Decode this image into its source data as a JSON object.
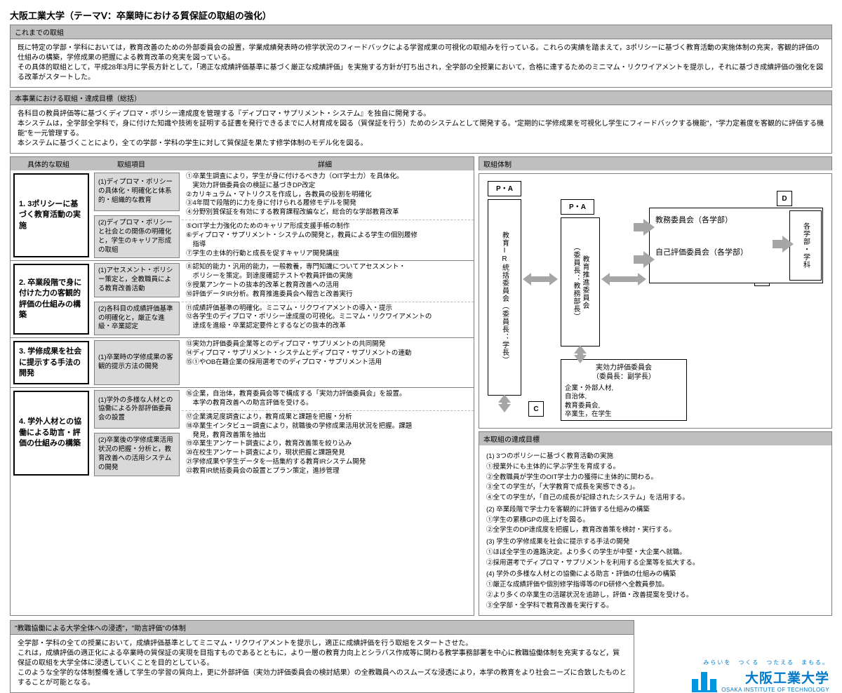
{
  "title": "大阪工業大学（テーマⅤ：卒業時における質保証の取組の強化）",
  "sec1": {
    "hdr": "これまでの取組",
    "body": "既に特定の学部・学科においては，教育改善のための外部委員会の設置，学業成績発表時の修学状況のフィードバックによる学習成果の可視化の取組みを行っている。これらの実績を踏まえて，3ポリシーに基づく教育活動の実施体制の充実，客観的評価の仕組みの構築，学修成果の把握による教育改革の充実を図っている。\nその具体的取組として，平成28年3月に学長方針として，「適正な成績評価基準に基づく厳正な成績評価」を実施する方針が打ち出され，全学部の全授業において，合格に達するためのミニマム・リクワイアメントを提示し，それに基づき成績評価の強化を図る改革がスタートした。"
  },
  "sec2": {
    "hdr": "本事業における取組・達成目標（総括）",
    "body": "各科目の教員評価等に基づくディプロマ・ポリシー達成度を管理する『ディプロマ・サプリメント・システム』を独自に開発する。\n本システムは，全学部全学科で，身に付けた知識や技術を証明する証書を発行できるまでに人材育成を図る（質保証を行う）ためのシステムとして開発する。\"定期的に学修成果を可視化し学生にフィードバックする機能\"，\"学力定着度を客観的に評価する機能\"を一元管理する。\n本システムに基づくことにより，全ての学部・学科の学生に対して質保証を果たす修学体制のモデル化を図る。"
  },
  "gridHdr": {
    "a": "具体的な取組",
    "b": "取組項目",
    "c": "詳細"
  },
  "rows": [
    {
      "cat": "1. 3ポリシーに基づく教育活動の実施",
      "subs": [
        "(1)ディプロマ・ポリシーの具体化・明確化と体系的・組織的な教育",
        "(2)ディプロマ・ポリシーと社会との関係の明確化と，学生のキャリア形成の取組"
      ],
      "dets": [
        "①卒業生調査により，学生が身に付けるべき力（OIT学士力）を具体化。\n　実効力評価委員会の検証に基づきDP改定\n②カリキュラム・マトリクスを作成し，各教員の役割を明確化\n③4年間で段階的に力を身に付けられる履修モデルを開発\n④分野別質保証を有効にする教育課程改編など，総合的な学部教育改革",
        "⑤OIT学士力強化のためのキャリア形成支援手帳の制作\n⑥ディプロマ・サプリメント・システムの開発と，教員による学生の個別履修\n　指導\n⑦学生の主体的行動と成長を促すキャリア開発講座"
      ]
    },
    {
      "cat": "2. 卒業段階で身に付けた力の客観的評価の仕組みの構築",
      "subs": [
        "(1)アセスメント・ポリシー策定と，全教職員による教育改善活動",
        "(2)各科目の成績評価基準の明確化と，厳正な進級・卒業認定"
      ],
      "dets": [
        "⑧認知的能力・汎用的能力，一般教養，専門知識についてアセスメント・\n　ポリシーを策定。到達度確認テストや教員評価の実施\n⑨授業アンケートの抜本的改革と教育改善への活用\n⑩評価データIR分析。教育推進委員会へ報告と改善実行",
        "⑪成績評価基準の明確化。ミニマム・リクワイアメントの導入・提示\n⑫各学生のディプロマ・ポリシー達成度の可視化。ミニマム・リクワイアメントの\n　達成を進級・卒業認定要件とするなどの抜本的改革"
      ]
    },
    {
      "cat": "3. 学修成果を社会に提示する手法の開発",
      "subs": [
        "(1)卒業時の学修成果の客観的提示方法の開発"
      ],
      "dets": [
        "⑬実効力評価委員企業等とのディプロマ・サプリメントの共同開発\n⑭ディプロマ・サプリメント・システムとディプロマ・サプリメントの連動\n⑮①やOB在籍企業の採用選考でのディプロマ・サプリメント活用"
      ]
    },
    {
      "cat": "4. 学外人材との協働による助言・評価の仕組みの構築",
      "subs": [
        "(1)学外の多様な人材との協働による外部評価委員会の設置",
        "(2)卒業後の学修成果活用状況の把握・分析と，教育改善への活用システムの開発"
      ],
      "dets": [
        "⑯企業，自治体，教育委員会等で構成する「実効力評価委員会」を設置。\n　本学の教育改善への助言評価を受ける。",
        "⑰企業満足度調査により，教育成果と課題を把握・分析\n⑱卒業生インタビュー調査により，就職後の学修成果活用状況を把握。課題\n　発見，教育改善策を抽出\n⑲卒業生アンケート調査により，教育改善策を絞り込み\n⑳在校生アンケート調査により，現状把握と課題発見\n㉑学修成果や学生データを一括集約する教育IRシステム開発\n㉒教育IR統括委員会の設置とプラン策定，進捗管理"
      ]
    }
  ],
  "org": {
    "hdr": "取組体制",
    "pa": "P・A",
    "d": "D",
    "c": "C",
    "n1": "教育IR統括委員会（委員長：学長）",
    "n2": "教育推進委員会\n（委員長：教務部長）",
    "n3": "教務委員会（各学部）",
    "n4": "自己評価委員会（各学部）",
    "n5": "各学部・学科",
    "n6": "実効力評価委員会\n（委員長：副学長）",
    "n6b": "企業・外部人材,\n自治体,\n教育委員会,\n卒業生，在学生"
  },
  "goals": {
    "hdr": "本取組の達成目標",
    "g1h": "(1) 3つのポリシーに基づく教育活動の実施",
    "g1": [
      "①授業外にも主体的に学ぶ学生を育成する。",
      "②全教職員が学生のOIT学士力の獲得に主体的に関わる。",
      "③全ての学生が，「大学教育で成長を実感できる」。",
      "④全ての学生が，「自己の成長が記録されたシステム」を活用する。"
    ],
    "g2h": "(2) 卒業段階で学士力を客観的に評価する仕組みの構築",
    "g2": [
      "①学生の累積GPの底上げを図る。",
      "②全学生のDP達成度を把握し，教育改善策を検討・実行する。"
    ],
    "g3h": "(3) 学生の学修成果を社会に提示する手法の開発",
    "g3": [
      "①ほぼ全学生の進路決定。より多くの学生が中堅・大企業へ就職。",
      "②採用選考でディプロマ・サプリメントを利用する企業等を拡大する。"
    ],
    "g4h": "(4) 学外の多様な人材との協働による助言・評価の仕組みの構築",
    "g4": [
      "①厳正な成績評価や個別修学指導等のFD研修へ全教員参加。",
      "②より多くの卒業生の活躍状況を追跡し，評価・改善提案を受ける。",
      "③全学部・全学科で教育改善を実行する。"
    ]
  },
  "bottom": {
    "hdr": "\"教職協働による大学全体への浸透\"，\"助言評価\"の体制",
    "body": "全学部・学科の全ての授業において，成績評価基準としてミニマム・リクワイアメントを提示し，適正に成績評価を行う取組をスタートさせた。\nこれは，成績評価の適正化による卒業時の質保証の実現を目指すものであるとともに，より一層の教育力向上とシラバス作成等に関わる教学事務部署を中心に教職協働体制を充実するなど，質保証の取組を大学全体に浸透していくことを目的としている。\nこのような全学的な体制整備を通して学生の学習の質向上，更に外部評価（実効力評価委員会の検討結果）の全教職員へのスムーズな浸透により，本学の教育をより社会ニーズに合致したものとすることが可能となる。"
  },
  "logo": {
    "tag": "みらいを　つくる　つたえる　まもる。",
    "jp": "大阪工業大学",
    "en": "OSAKA INSTITUTE OF TECHNOLOGY"
  },
  "colors": {
    "hdr_bg": "#bfbfbf",
    "sub_bg": "#d9d9d9",
    "border": "#808080",
    "arrow": "#a6a6a6",
    "logo": "#0097e0"
  }
}
